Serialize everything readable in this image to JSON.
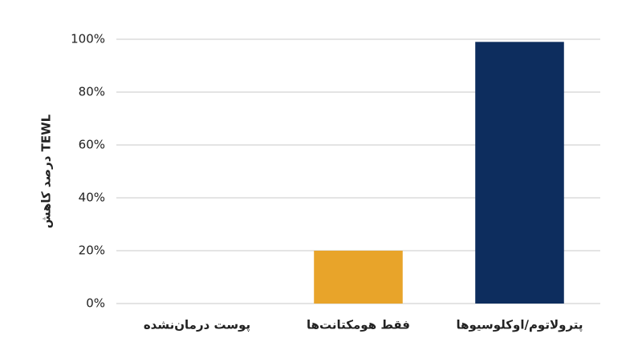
{
  "chart_data": {
    "type": "bar",
    "y_label": "درصد کاهش TEWL",
    "categories": [
      "پوست درمان‌نشده",
      "فقط هومکتانت‌ها",
      "پترولاتوم/اوکلوسیوها"
    ],
    "values": [
      0,
      20,
      99
    ],
    "colors": [
      null,
      "#e8a42a",
      "#0d2d5e"
    ],
    "ylim": [
      0,
      100
    ],
    "yticks": [
      {
        "value": 0,
        "label": "0%"
      },
      {
        "value": 20,
        "label": "20%"
      },
      {
        "value": 40,
        "label": "40%"
      },
      {
        "value": 60,
        "label": "60%"
      },
      {
        "value": 80,
        "label": "80%"
      },
      {
        "value": 100,
        "label": "100%"
      }
    ],
    "grid": true
  }
}
